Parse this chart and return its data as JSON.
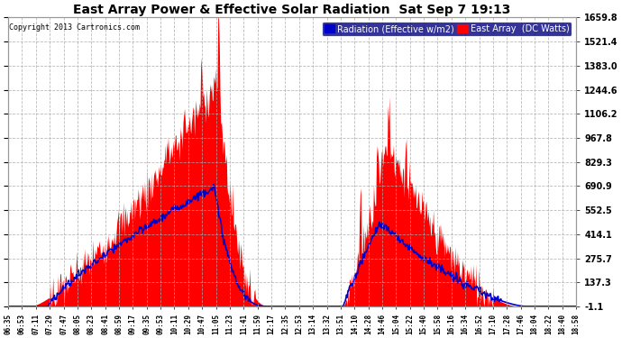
{
  "title": "East Array Power & Effective Solar Radiation  Sat Sep 7 19:13",
  "copyright": "Copyright 2013 Cartronics.com",
  "legend_blue": "Radiation (Effective w/m2)",
  "legend_red": "East Array  (DC Watts)",
  "fig_bg_color": "#ffffff",
  "plot_bg_color": "#ffffff",
  "grid_color": "#aaaaaa",
  "red_color": "#ff0000",
  "blue_color": "#0000cc",
  "title_color": "#000000",
  "tick_color": "#000000",
  "ymin": -1.1,
  "ymax": 1659.8,
  "yticks": [
    -1.1,
    137.3,
    275.7,
    414.1,
    552.5,
    690.9,
    829.3,
    967.8,
    1106.2,
    1244.6,
    1383.0,
    1521.4,
    1659.8
  ],
  "xtick_labels": [
    "06:35",
    "06:53",
    "07:11",
    "07:29",
    "07:47",
    "08:05",
    "08:23",
    "08:41",
    "08:59",
    "09:17",
    "09:35",
    "09:53",
    "10:11",
    "10:29",
    "10:47",
    "11:05",
    "11:23",
    "11:41",
    "11:59",
    "12:17",
    "12:35",
    "12:53",
    "13:14",
    "13:32",
    "13:51",
    "14:10",
    "14:28",
    "14:46",
    "15:04",
    "15:22",
    "15:40",
    "15:58",
    "16:16",
    "16:34",
    "16:52",
    "17:10",
    "17:28",
    "17:46",
    "18:04",
    "18:22",
    "18:40",
    "18:58"
  ],
  "num_points": 800
}
